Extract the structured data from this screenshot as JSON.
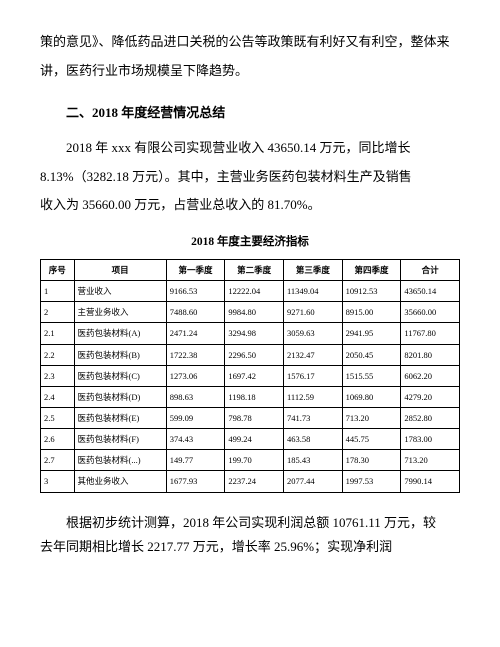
{
  "intro": {
    "line1": "策的意见》、降低药品进口关税的公告等政策既有利好又有利空，整体来",
    "line2": "讲，医药行业市场规模呈下降趋势。"
  },
  "section2": {
    "heading": "二、2018 年度经营情况总结",
    "p1_l1": "2018 年 xxx 有限公司实现营业收入 43650.14 万元，同比增长",
    "p1_l2": "8.13%（3282.18 万元）。其中，主营业务医药包装材料生产及销售",
    "p1_l3": "收入为 35660.00 万元，占营业总收入的 81.70%。"
  },
  "table": {
    "title": "2018 年度主要经济指标",
    "headers": [
      "序号",
      "项目",
      "第一季度",
      "第二季度",
      "第三季度",
      "第四季度",
      "合计"
    ],
    "rows": [
      [
        "1",
        "营业收入",
        "9166.53",
        "12222.04",
        "11349.04",
        "10912.53",
        "43650.14"
      ],
      [
        "2",
        "主营业务收入",
        "7488.60",
        "9984.80",
        "9271.60",
        "8915.00",
        "35660.00"
      ],
      [
        "2.1",
        "医药包装材料(A)",
        "2471.24",
        "3294.98",
        "3059.63",
        "2941.95",
        "11767.80"
      ],
      [
        "2.2",
        "医药包装材料(B)",
        "1722.38",
        "2296.50",
        "2132.47",
        "2050.45",
        "8201.80"
      ],
      [
        "2.3",
        "医药包装材料(C)",
        "1273.06",
        "1697.42",
        "1576.17",
        "1515.55",
        "6062.20"
      ],
      [
        "2.4",
        "医药包装材料(D)",
        "898.63",
        "1198.18",
        "1112.59",
        "1069.80",
        "4279.20"
      ],
      [
        "2.5",
        "医药包装材料(E)",
        "599.09",
        "798.78",
        "741.73",
        "713.20",
        "2852.80"
      ],
      [
        "2.6",
        "医药包装材料(F)",
        "374.43",
        "499.24",
        "463.58",
        "445.75",
        "1783.00"
      ],
      [
        "2.7",
        "医药包装材料(...)",
        "149.77",
        "199.70",
        "185.43",
        "178.30",
        "713.20"
      ],
      [
        "3",
        "其他业务收入",
        "1677.93",
        "2237.24",
        "2077.44",
        "1997.53",
        "7990.14"
      ]
    ]
  },
  "bottom": {
    "l1": "根据初步统计测算，2018 年公司实现利润总额 10761.11 万元，较",
    "l2": "去年同期相比增长 2217.77 万元，增长率 25.96%；实现净利润"
  }
}
